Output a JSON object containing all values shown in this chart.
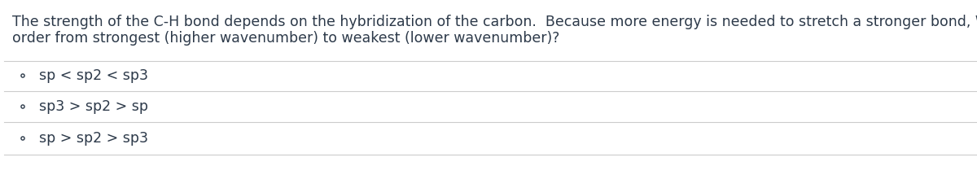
{
  "background_color": "#ffffff",
  "text_color": "#2d3a4a",
  "question_line1": "The strength of the C-H bond depends on the hybridization of the carbon.  Because more energy is needed to stretch a stronger bond, What is the correct",
  "question_line2": "order from strongest (higher wavenumber) to weakest (lower wavenumber)?",
  "options": [
    "sp < sp2 < sp3",
    "sp3 > sp2 > sp",
    "sp > sp2 > sp3"
  ],
  "divider_color": "#cccccc",
  "circle_color": "#2d3a4a",
  "font_size_question": 12.5,
  "font_size_option": 12.5,
  "fig_width": 12.0,
  "fig_height": 2.31
}
